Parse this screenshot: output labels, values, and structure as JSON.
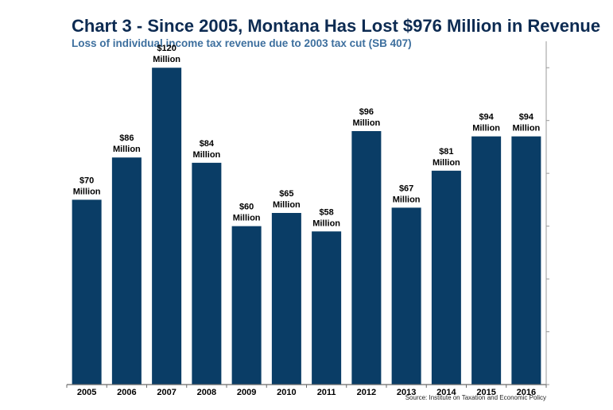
{
  "chart_data": {
    "type": "bar",
    "title": "Chart 3 - Since 2005, Montana Has Lost $976 Million in Revenue",
    "subtitle": "Loss of individual income tax revenue due to 2003 tax cut (SB 407)",
    "categories": [
      "2005",
      "2006",
      "2007",
      "2008",
      "2009",
      "2010",
      "2011",
      "2012",
      "2013",
      "2014",
      "2015",
      "2016"
    ],
    "values": [
      70,
      86,
      120,
      84,
      60,
      65,
      58,
      96,
      67,
      81,
      94,
      94
    ],
    "value_labels": [
      [
        "$70",
        "Million"
      ],
      [
        "$86",
        "Million"
      ],
      [
        "$120",
        "Million"
      ],
      [
        "$84",
        "Million"
      ],
      [
        "$60",
        "Million"
      ],
      [
        "$65",
        "Million"
      ],
      [
        "$58",
        "Million"
      ],
      [
        "$96",
        "Million"
      ],
      [
        "$67",
        "Million"
      ],
      [
        "$81",
        "Million"
      ],
      [
        "$94",
        "Million"
      ],
      [
        "$94",
        "Million"
      ]
    ],
    "ylim": [
      0,
      130
    ],
    "grid": false,
    "legend": "none",
    "bar_color": "#0a3d66",
    "source": "Source: Institute on Taxation and Economic Policy"
  }
}
